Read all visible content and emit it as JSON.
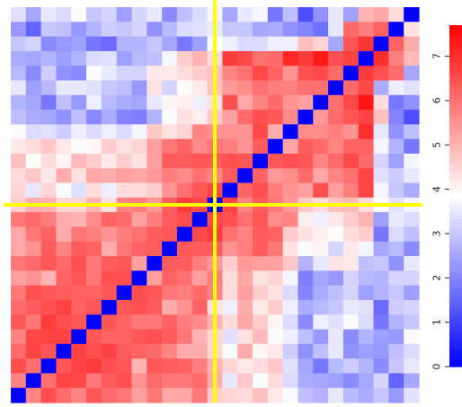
{
  "chart_data": {
    "type": "heatmap",
    "title": "",
    "n": 27,
    "diagonal_value": 0,
    "colorbar": {
      "min": 0,
      "max": 7.7,
      "ticks": [
        0,
        1,
        2,
        3,
        4,
        5,
        6,
        7
      ],
      "tick_labels": [
        "0",
        "1",
        "2",
        "3",
        "4",
        "5",
        "6",
        "7"
      ],
      "colors": [
        "#0000ff",
        "#ffffff",
        "#ff0000"
      ]
    },
    "crosshair": {
      "color": "#ffff00",
      "row_index": 13,
      "col_index": 13
    },
    "matrix": [
      [
        3.4,
        2.5,
        3.5,
        3.3,
        3.8,
        3.0,
        3.2,
        2.4,
        3.2,
        3.5,
        2.1,
        2.9,
        3.3,
        3.7,
        2.5,
        3.5,
        3.7,
        1.8,
        2.9,
        1.2,
        2.2,
        3.5,
        2.4,
        5.0,
        5.2,
        4.4,
        0
      ],
      [
        2.3,
        1.5,
        3.0,
        2.9,
        2.3,
        2.7,
        3.1,
        3.0,
        3.2,
        2.2,
        2.8,
        3.3,
        3.4,
        3.5,
        3.0,
        3.0,
        2.5,
        2.6,
        2.2,
        2.0,
        1.7,
        3.5,
        6.1,
        5.8,
        6.2,
        0,
        4.3
      ],
      [
        3.0,
        3.2,
        2.1,
        2.3,
        2.4,
        1.8,
        1.6,
        2.7,
        2.7,
        3.0,
        2.5,
        1.8,
        2.4,
        3.8,
        3.6,
        3.3,
        3.3,
        3.6,
        3.6,
        4.8,
        4.5,
        2.5,
        6.4,
        6.9,
        0,
        6.2,
        5.1
      ],
      [
        2.6,
        2.5,
        2.7,
        2.4,
        2.7,
        3.3,
        3.4,
        2.4,
        2.8,
        2.9,
        3.7,
        4.6,
        5.0,
        4.4,
        6.8,
        6.6,
        6.0,
        6.1,
        7.1,
        6.8,
        7.3,
        6.5,
        6.7,
        0,
        7.0,
        5.8,
        4.9
      ],
      [
        2.8,
        2.1,
        3.1,
        2.2,
        2.1,
        3.8,
        3.5,
        3.2,
        3.2,
        4.2,
        4.2,
        4.4,
        4.6,
        4.8,
        5.7,
        6.0,
        6.6,
        6.2,
        5.5,
        6.5,
        6.6,
        6.1,
        0,
        6.8,
        6.5,
        6.1,
        2.5
      ],
      [
        3.5,
        2.4,
        2.8,
        3.5,
        3.5,
        3.4,
        3.0,
        2.9,
        2.3,
        4.3,
        3.2,
        3.9,
        4.2,
        4.8,
        5.4,
        5.6,
        6.0,
        5.8,
        5.8,
        6.0,
        6.0,
        0,
        6.1,
        6.6,
        2.6,
        3.6,
        3.4
      ],
      [
        2.7,
        2.5,
        1.8,
        2.9,
        2.3,
        3.6,
        2.8,
        2.6,
        2.5,
        3.5,
        4.0,
        4.1,
        3.6,
        4.3,
        6.5,
        5.2,
        5.7,
        6.1,
        5.5,
        5.3,
        0,
        6.0,
        6.6,
        7.4,
        4.4,
        1.8,
        2.2
      ],
      [
        2.9,
        2.6,
        2.5,
        2.2,
        2.9,
        2.1,
        2.6,
        2.0,
        1.9,
        2.7,
        3.8,
        4.3,
        4.1,
        4.7,
        5.3,
        6.1,
        6.5,
        6.4,
        5.6,
        0,
        5.4,
        6.1,
        6.4,
        6.7,
        4.8,
        2.0,
        1.2
      ],
      [
        3.8,
        3.3,
        3.4,
        3.1,
        3.6,
        3.3,
        3.6,
        3.3,
        3.7,
        4.7,
        4.3,
        4.5,
        5.7,
        5.5,
        5.5,
        5.5,
        6.6,
        5.1,
        0,
        5.6,
        5.6,
        5.8,
        5.5,
        7.0,
        3.5,
        2.2,
        2.9
      ],
      [
        4.2,
        4.4,
        4.7,
        4.2,
        3.8,
        4.0,
        4.6,
        4.3,
        4.5,
        5.3,
        5.9,
        6.2,
        5.6,
        5.9,
        5.8,
        5.5,
        6.3,
        0,
        5.2,
        6.3,
        6.1,
        5.7,
        6.2,
        6.2,
        3.7,
        2.7,
        1.8
      ],
      [
        4.8,
        3.9,
        4.4,
        4.0,
        4.9,
        4.6,
        4.2,
        4.6,
        4.3,
        5.3,
        6.3,
        6.3,
        6.4,
        6.3,
        6.5,
        6.4,
        0,
        6.4,
        6.5,
        6.4,
        5.7,
        6.1,
        6.6,
        6.1,
        3.2,
        2.4,
        3.7
      ],
      [
        4.4,
        4.7,
        4.2,
        5.1,
        4.3,
        5.2,
        5.1,
        5.3,
        5.2,
        5.4,
        5.8,
        5.6,
        6.0,
        5.7,
        6.3,
        0,
        6.2,
        5.4,
        5.6,
        6.1,
        5.2,
        5.7,
        6.0,
        6.7,
        3.4,
        3.1,
        3.5
      ],
      [
        4.5,
        3.5,
        4.5,
        3.8,
        3.4,
        4.4,
        3.6,
        4.4,
        4.4,
        4.6,
        5.5,
        6.0,
        6.4,
        6.6,
        0,
        6.2,
        6.5,
        5.8,
        5.5,
        5.3,
        6.5,
        5.3,
        5.8,
        6.7,
        3.7,
        3.0,
        2.6
      ],
      [
        4.6,
        5.1,
        5.0,
        4.5,
        4.5,
        5.0,
        4.3,
        5.7,
        5.8,
        5.4,
        6.3,
        6.8,
        6.6,
        0,
        6.7,
        5.7,
        6.3,
        5.9,
        5.4,
        4.7,
        4.4,
        4.8,
        4.9,
        4.4,
        3.8,
        3.4,
        3.7
      ],
      [
        5.9,
        6.1,
        5.8,
        5.1,
        5.0,
        5.6,
        6.2,
        6.1,
        5.3,
        5.8,
        6.3,
        6.5,
        0,
        6.6,
        6.5,
        6.0,
        6.4,
        5.6,
        5.7,
        4.1,
        3.6,
        4.2,
        4.6,
        5.0,
        2.4,
        3.5,
        3.3
      ],
      [
        5.2,
        5.9,
        6.2,
        5.1,
        5.9,
        5.8,
        5.5,
        5.8,
        6.0,
        6.3,
        6.4,
        0,
        6.6,
        6.8,
        6.0,
        5.7,
        6.3,
        6.2,
        4.6,
        4.3,
        4.1,
        3.9,
        4.4,
        4.6,
        1.8,
        3.3,
        2.9
      ],
      [
        5.2,
        5.5,
        6.3,
        5.7,
        6.3,
        6.2,
        5.1,
        5.9,
        6.2,
        6.3,
        0,
        6.4,
        6.3,
        6.3,
        5.5,
        5.8,
        6.3,
        5.9,
        4.3,
        3.8,
        4.0,
        3.2,
        4.2,
        3.7,
        2.5,
        2.8,
        2.1
      ],
      [
        5.9,
        6.1,
        6.4,
        6.1,
        6.5,
        5.9,
        6.3,
        6.4,
        5.3,
        0,
        6.3,
        6.3,
        5.8,
        5.4,
        4.6,
        5.4,
        5.3,
        5.3,
        4.7,
        2.7,
        3.5,
        4.3,
        4.2,
        2.9,
        3.0,
        2.2,
        3.5
      ],
      [
        5.3,
        5.5,
        5.0,
        6.2,
        6.4,
        5.9,
        6.5,
        6.5,
        0,
        5.3,
        6.2,
        6.0,
        5.3,
        5.8,
        4.4,
        5.2,
        4.3,
        4.5,
        3.7,
        1.9,
        2.5,
        2.3,
        3.2,
        2.8,
        2.7,
        3.2,
        3.2
      ],
      [
        5.9,
        6.5,
        6.4,
        6.3,
        6.2,
        6.2,
        6.4,
        0,
        6.5,
        6.4,
        5.9,
        5.8,
        6.1,
        5.7,
        4.4,
        5.3,
        4.6,
        4.3,
        3.3,
        2.0,
        2.6,
        2.9,
        3.2,
        2.4,
        2.7,
        3.0,
        2.4
      ],
      [
        6.1,
        6.3,
        6.5,
        6.7,
        6.2,
        6.4,
        0,
        6.4,
        6.5,
        6.3,
        5.1,
        5.5,
        6.2,
        4.3,
        3.6,
        5.1,
        4.2,
        4.6,
        3.6,
        2.6,
        2.8,
        3.0,
        3.5,
        3.4,
        1.6,
        3.1,
        3.2
      ],
      [
        6.4,
        5.9,
        6.8,
        6.5,
        6.4,
        0,
        6.4,
        6.2,
        5.9,
        5.9,
        6.2,
        5.8,
        5.6,
        5.0,
        4.4,
        5.2,
        4.6,
        4.0,
        3.3,
        2.1,
        3.6,
        3.4,
        3.8,
        3.3,
        1.8,
        2.7,
        3.0
      ],
      [
        5.7,
        6.6,
        6.7,
        6.7,
        0,
        6.4,
        6.2,
        6.2,
        6.4,
        6.5,
        6.3,
        5.9,
        5.0,
        4.5,
        3.4,
        4.3,
        4.9,
        3.8,
        3.6,
        2.9,
        2.3,
        3.5,
        2.1,
        2.7,
        2.4,
        2.3,
        3.8
      ],
      [
        6.1,
        6.7,
        6.4,
        0,
        6.7,
        6.5,
        6.7,
        6.3,
        6.2,
        6.1,
        5.7,
        5.1,
        5.1,
        4.5,
        3.8,
        5.1,
        4.0,
        4.2,
        3.1,
        2.2,
        2.9,
        3.5,
        2.2,
        2.4,
        2.3,
        2.9,
        3.3
      ],
      [
        6.5,
        6.0,
        0,
        6.4,
        6.7,
        6.8,
        6.5,
        6.4,
        5.0,
        6.4,
        6.3,
        6.2,
        5.8,
        5.0,
        4.5,
        4.2,
        4.4,
        4.7,
        3.4,
        2.5,
        1.8,
        2.8,
        3.1,
        2.7,
        2.1,
        3.0,
        3.5
      ],
      [
        5.7,
        0,
        6.0,
        6.7,
        6.6,
        5.9,
        6.3,
        6.5,
        5.5,
        6.1,
        5.9,
        5.9,
        6.1,
        5.1,
        3.5,
        4.7,
        3.9,
        4.4,
        3.3,
        2.6,
        2.5,
        2.4,
        2.1,
        2.5,
        3.2,
        1.5,
        2.5
      ],
      [
        0,
        5.7,
        6.5,
        6.1,
        5.7,
        6.4,
        6.1,
        5.9,
        5.3,
        5.9,
        5.2,
        5.2,
        5.9,
        4.6,
        4.5,
        4.4,
        4.8,
        4.2,
        3.8,
        2.9,
        2.7,
        3.5,
        2.8,
        2.6,
        3.0,
        2.3,
        3.4
      ]
    ]
  }
}
